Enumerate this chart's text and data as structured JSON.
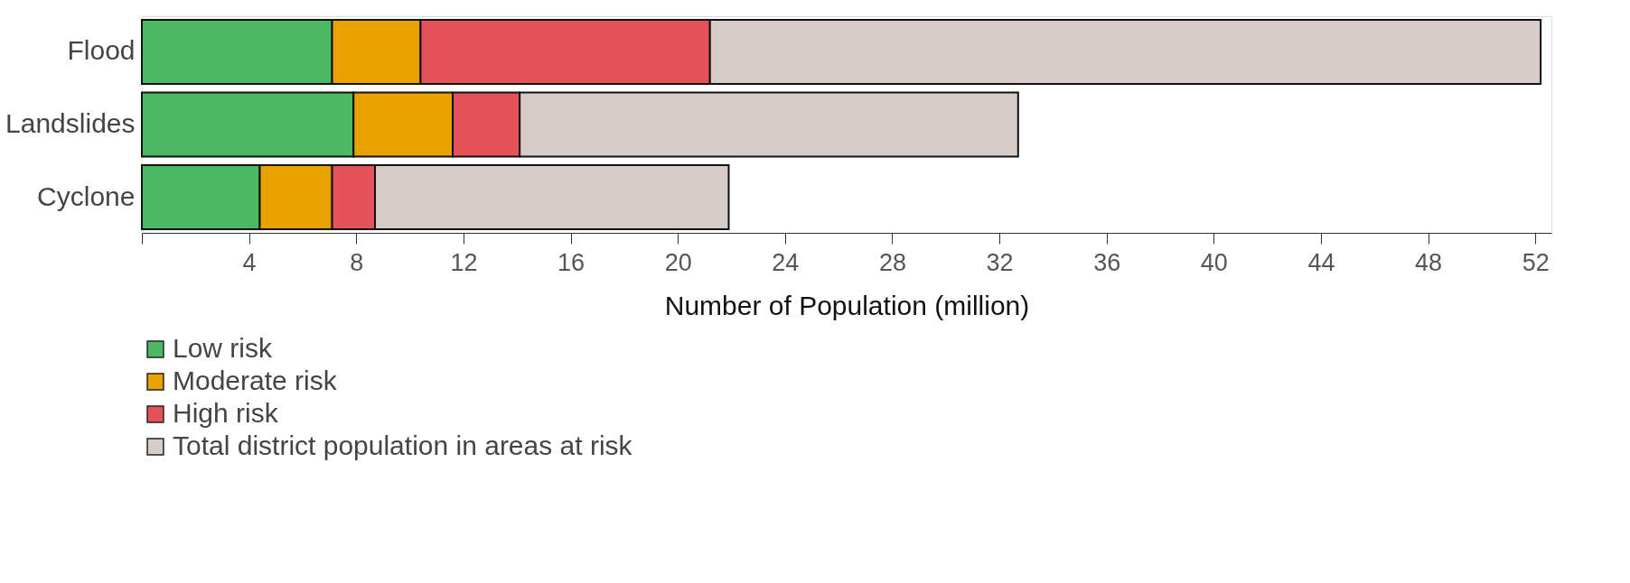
{
  "chart_data": {
    "type": "bar",
    "orientation": "horizontal",
    "stacked": true,
    "categories": [
      "Flood",
      "Landslides",
      "Cyclone"
    ],
    "series": [
      {
        "name": "Low risk",
        "color": "#4db863",
        "values": [
          7.1,
          7.9,
          4.4
        ]
      },
      {
        "name": "Moderate risk",
        "color": "#e8a200",
        "values": [
          3.3,
          3.7,
          2.7
        ]
      },
      {
        "name": "High risk",
        "color": "#e5525a",
        "values": [
          10.8,
          2.5,
          1.6
        ]
      },
      {
        "name": "Total district population in areas at risk",
        "color": "#d7cbc8",
        "values": [
          31.0,
          18.6,
          13.2
        ]
      }
    ],
    "xlabel": "Number of Population (million)",
    "xlim": [
      0,
      52.6
    ],
    "xticks": [
      {
        "value": 0,
        "label": null
      },
      4,
      8,
      12,
      16,
      20,
      24,
      28,
      32,
      36,
      40,
      44,
      48,
      52
    ],
    "grid": false,
    "legend": "bottom left"
  }
}
